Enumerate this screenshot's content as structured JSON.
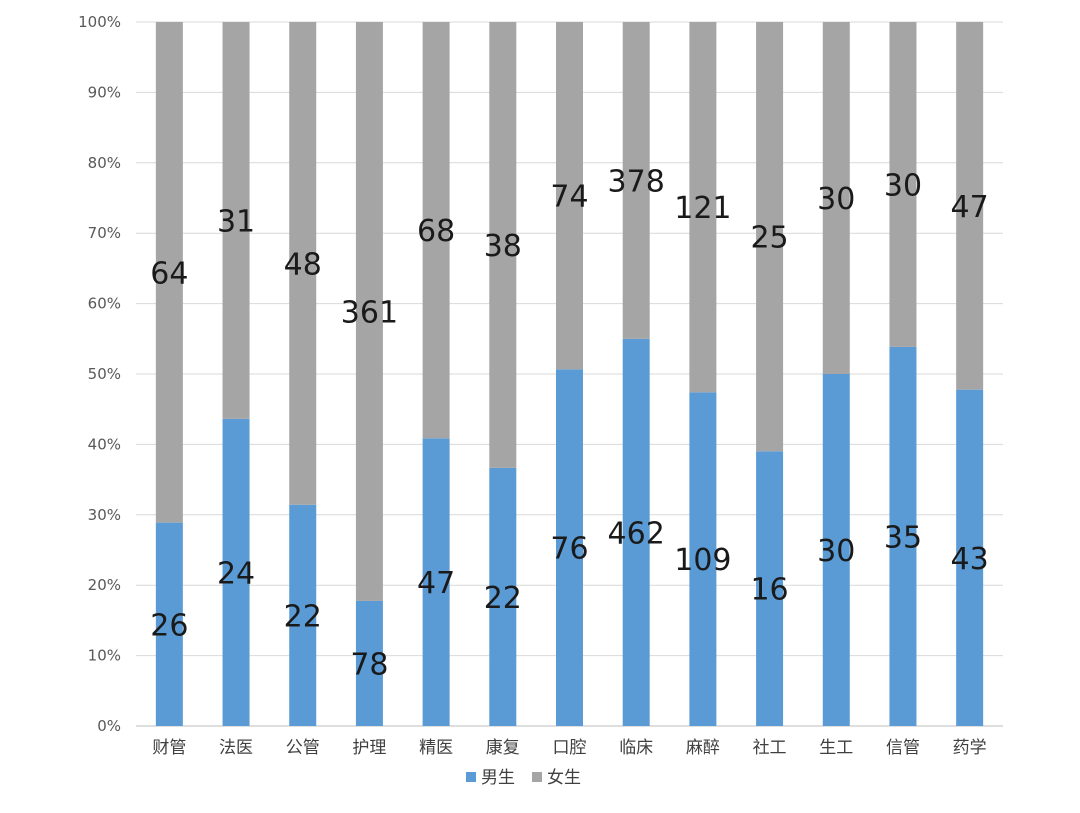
{
  "chart_data": {
    "type": "bar",
    "stacked": "percent",
    "categories": [
      "财管",
      "法医",
      "公管",
      "护理",
      "精医",
      "康复",
      "口腔",
      "临床",
      "麻醉",
      "社工",
      "生工",
      "信管",
      "药学"
    ],
    "series": [
      {
        "name": "男生",
        "color": "#5b9bd5",
        "values": [
          26,
          24,
          22,
          78,
          47,
          22,
          76,
          462,
          109,
          16,
          30,
          35,
          43
        ]
      },
      {
        "name": "女生",
        "color": "#a5a5a5",
        "values": [
          64,
          31,
          48,
          361,
          68,
          38,
          74,
          378,
          121,
          25,
          30,
          30,
          47
        ]
      }
    ],
    "y_ticks": [
      "0%",
      "10%",
      "20%",
      "30%",
      "40%",
      "50%",
      "60%",
      "70%",
      "80%",
      "90%",
      "100%"
    ],
    "ylim": [
      0,
      100
    ],
    "grid": true,
    "legend_position": "bottom"
  }
}
